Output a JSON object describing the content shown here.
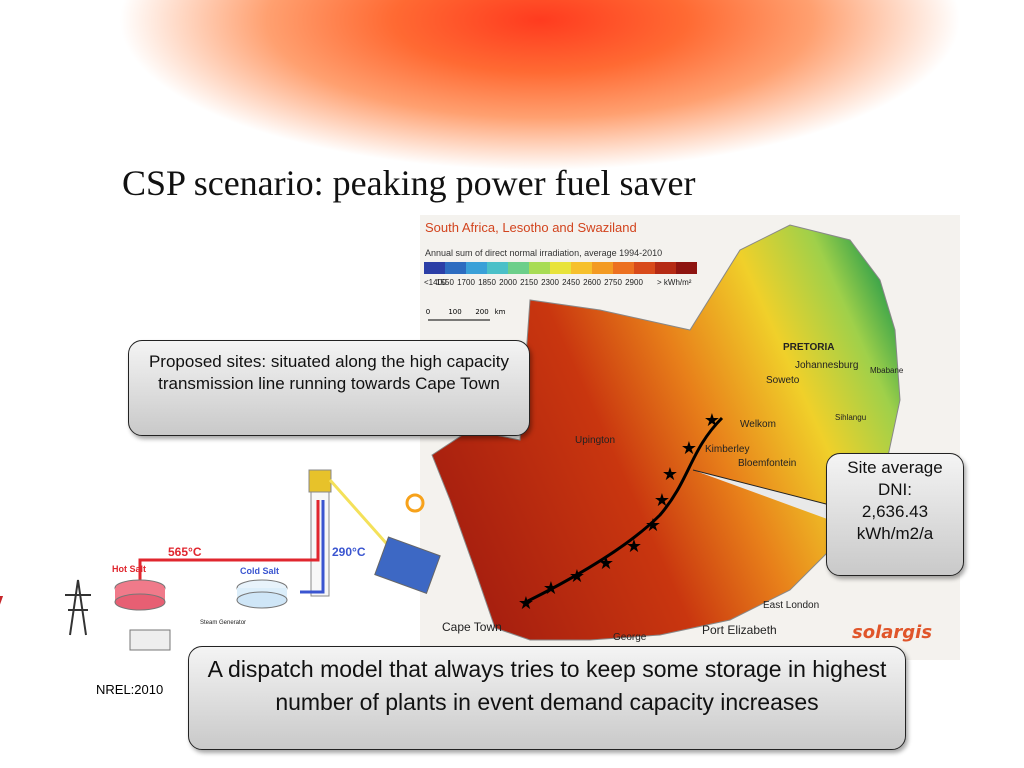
{
  "title": "CSP scenario: peaking power fuel saver",
  "map": {
    "title": "South Africa, Lesotho and Swaziland",
    "subtitle": "Annual sum of direct normal irradiation, average 1994-2010",
    "legend_labels": [
      "<1400",
      "1550",
      "1700",
      "1850",
      "2000",
      "2150",
      "2300",
      "2450",
      "2600",
      "2750",
      "2900",
      "> kWh/m²"
    ],
    "scale_labels": [
      "0",
      "100",
      "200",
      "km"
    ],
    "places": [
      "PRETORIA",
      "Johannesburg",
      "Soweto",
      "Welkom",
      "Bloemfontein",
      "Kimberley",
      "Upington",
      "Cape Town",
      "George",
      "Port Elizabeth",
      "East London",
      "Mbabane",
      "Sihlangu"
    ],
    "logo": "solargis"
  },
  "callouts": {
    "sites": "Proposed sites: situated along the high capacity transmission line running towards Cape Town",
    "dni": "Site average DNI: 2,636.43 kWh/m2/a",
    "dispatch": "A dispatch model that always tries to keep some storage in highest number of plants in event demand capacity increases"
  },
  "diagram": {
    "hot_temp": "565°C",
    "cold_temp": "290°C",
    "hot_tank": "Hot Salt",
    "cold_tank": "Cold Salt",
    "steam": "Steam Generator"
  },
  "source": "NREL:2010"
}
